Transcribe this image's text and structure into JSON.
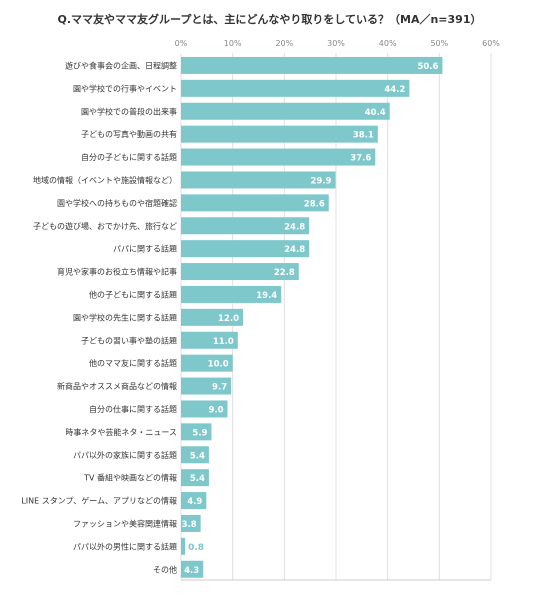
{
  "chart_data": {
    "type": "bar",
    "orientation": "horizontal",
    "title": "Q.ママ友やママ友グループとは、主にどんなやり取りをしている？（MA／n=391）",
    "xlim": [
      0,
      60
    ],
    "x_ticks": [
      "0%",
      "10%",
      "20%",
      "30%",
      "40%",
      "50%",
      "60%"
    ],
    "grid": true,
    "bar_color": "#7ec8cc",
    "categories": [
      "遊びや食事会の企画、日程調整",
      "園や学校での行事やイベント",
      "園や学校での普段の出来事",
      "子どもの写真や動画の共有",
      "自分の子どもに関する話題",
      "地域の情報（イベントや施設情報など）",
      "園や学校への持ちものや宿題確認",
      "子どもの遊び場、おでかけ先、旅行など",
      "パパに関する話題",
      "育児や家事のお役立ち情報や記事",
      "他の子どもに関する話題",
      "園や学校の先生に関する話題",
      "子どもの習い事や塾の話題",
      "他のママ友に関する話題",
      "新商品やオススメ商品などの情報",
      "自分の仕事に関する話題",
      "時事ネタや芸能ネタ・ニュース",
      "パパ以外の家族に関する話題",
      "TV 番組や映画などの情報",
      "LINE スタンプ、ゲーム、アプリなどの情報",
      "ファッションや美容関連情報",
      "パパ以外の男性に関する話題",
      "その他"
    ],
    "values": [
      50.6,
      44.2,
      40.4,
      38.1,
      37.6,
      29.9,
      28.6,
      24.8,
      24.8,
      22.8,
      19.4,
      12.0,
      11.0,
      10.0,
      9.7,
      9.0,
      5.9,
      5.4,
      5.4,
      4.9,
      3.8,
      0.8,
      4.3
    ],
    "value_labels": [
      "50.6",
      "44.2",
      "40.4",
      "38.1",
      "37.6",
      "29.9",
      "28.6",
      "24.8",
      "24.8",
      "22.8",
      "19.4",
      "12.0",
      "11.0",
      "10.0",
      "9.7",
      "9.0",
      "5.9",
      "5.4",
      "5.4",
      "4.9",
      "3.8",
      "0.8",
      "4.3"
    ]
  }
}
